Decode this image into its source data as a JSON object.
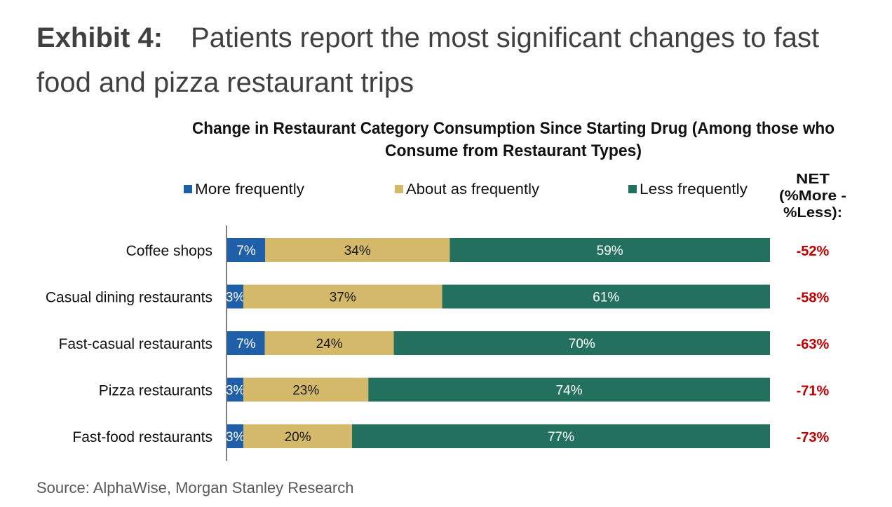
{
  "header": {
    "label": "Exhibit 4:",
    "text": "Patients report the most significant changes to fast food and pizza restaurant trips"
  },
  "footer": {
    "source": "Source: AlphaWise, Morgan Stanley Research"
  },
  "colors": {
    "more": "#1F5FA8",
    "about": "#D4B96A",
    "less": "#23705F",
    "net": "#C00000"
  },
  "chart_data": {
    "type": "bar",
    "orientation": "horizontal",
    "stacked": true,
    "title": "Change in Restaurant Category Consumption Since Starting Drug (Among those who Consume from Restaurant Types)",
    "title_lines": [
      "Change in Restaurant Category Consumption Since Starting Drug (Among those who",
      "Consume from Restaurant Types)"
    ],
    "legend_placement": "top",
    "grid": false,
    "categories": [
      "Coffee shops",
      "Casual dining restaurants",
      "Fast-casual restaurants",
      "Pizza restaurants",
      "Fast-food restaurants"
    ],
    "series": [
      {
        "name": "More frequently",
        "values": [
          7,
          3,
          7,
          3,
          3
        ],
        "labels": [
          "7%",
          "3%",
          "7%",
          "3%",
          "3%"
        ]
      },
      {
        "name": "About as frequently",
        "values": [
          34,
          37,
          24,
          23,
          20
        ],
        "labels": [
          "34%",
          "37%",
          "24%",
          "23%",
          "20%"
        ]
      },
      {
        "name": "Less frequently",
        "values": [
          59,
          61,
          70,
          74,
          77
        ],
        "labels": [
          "59%",
          "61%",
          "70%",
          "74%",
          "77%"
        ]
      }
    ],
    "net": {
      "header_lines": [
        "NET",
        "(%More -",
        "%Less):"
      ],
      "values": [
        "-52%",
        "-58%",
        "-63%",
        "-71%",
        "-73%"
      ]
    }
  }
}
